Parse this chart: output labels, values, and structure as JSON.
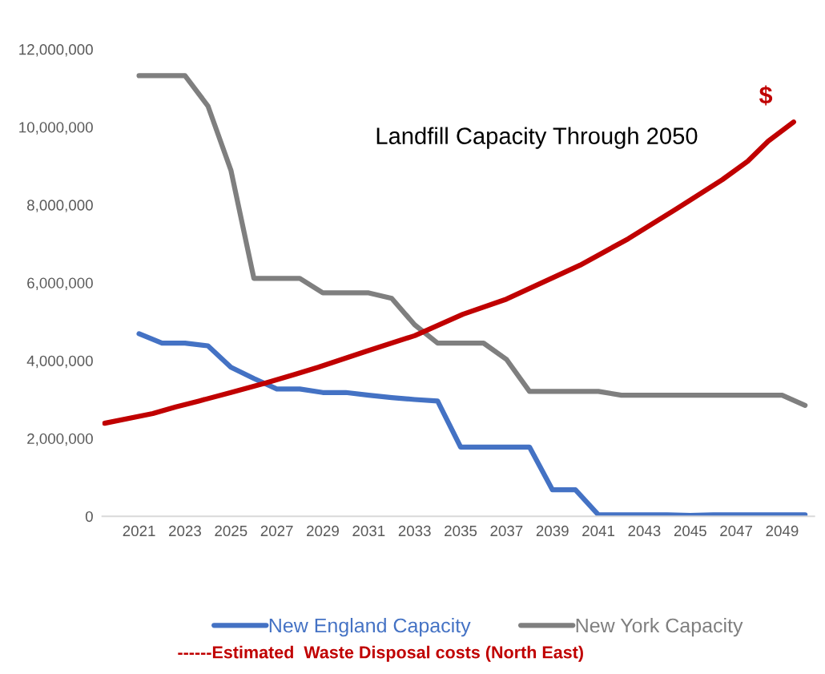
{
  "chart_data": {
    "type": "line",
    "title": "Landfill Capacity Through 2050",
    "xlim": [
      2019.4,
      2050.4
    ],
    "xticks": [
      2021,
      2023,
      2025,
      2027,
      2029,
      2031,
      2033,
      2035,
      2037,
      2039,
      2041,
      2043,
      2045,
      2047,
      2049
    ],
    "ylim": [
      0,
      12000000
    ],
    "yticks": [
      {
        "value": 0,
        "label": "0"
      },
      {
        "value": 2000000,
        "label": "2,000,000"
      },
      {
        "value": 4000000,
        "label": "4,000,000"
      },
      {
        "value": 6000000,
        "label": "6,000,000"
      },
      {
        "value": 8000000,
        "label": "8,000,000"
      },
      {
        "value": 10000000,
        "label": "10,000,000"
      },
      {
        "value": 12000000,
        "label": "12,000,000"
      }
    ],
    "grid": false,
    "legend": "bottom",
    "marker": "none",
    "line_style": "solid",
    "annotations": [
      {
        "text": "$",
        "x": 2049.5,
        "y": 10130000
      }
    ],
    "series": [
      {
        "name": "New England Capacity",
        "color": "#4472c4",
        "x": [
          2021,
          2022,
          2023,
          2024,
          2025,
          2026,
          2027,
          2028,
          2029,
          2030,
          2031,
          2032,
          2033,
          2034,
          2035,
          2036,
          2037,
          2038,
          2039,
          2040,
          2041,
          2042,
          2043,
          2044,
          2045,
          2046,
          2047,
          2048,
          2049,
          2050
        ],
        "values": [
          4690000,
          4450000,
          4450000,
          4380000,
          3830000,
          3540000,
          3270000,
          3270000,
          3180000,
          3180000,
          3110000,
          3050000,
          3000000,
          2960000,
          1780000,
          1780000,
          1780000,
          1780000,
          680000,
          680000,
          40000,
          40000,
          40000,
          40000,
          20000,
          40000,
          40000,
          40000,
          40000,
          40000
        ]
      },
      {
        "name": "New York Capacity",
        "color": "#7f7f7f",
        "x": [
          2021,
          2022,
          2023,
          2024,
          2025,
          2026,
          2027,
          2028,
          2029,
          2030,
          2031,
          2032,
          2033,
          2034,
          2035,
          2036,
          2037,
          2038,
          2039,
          2040,
          2041,
          2042,
          2043,
          2044,
          2045,
          2046,
          2047,
          2048,
          2049,
          2050
        ],
        "values": [
          11320000,
          11320000,
          11320000,
          10540000,
          8890000,
          6110000,
          6110000,
          6110000,
          5740000,
          5740000,
          5740000,
          5600000,
          4920000,
          4450000,
          4450000,
          4450000,
          4030000,
          3210000,
          3210000,
          3210000,
          3210000,
          3110000,
          3110000,
          3110000,
          3110000,
          3110000,
          3110000,
          3110000,
          3110000,
          2850000
        ]
      },
      {
        "name": "------Estimated  Waste Disposal costs (North East)",
        "color": "#c00000",
        "x": [
          2019.5,
          2021.6,
          2022.6,
          2023.6,
          2025.0,
          2026.5,
          2027.8,
          2028.8,
          2030.9,
          2033.0,
          2035.1,
          2037.0,
          2040.2,
          2042.3,
          2044.3,
          2046.4,
          2047.5,
          2048.4,
          2049.5
        ],
        "values": [
          2390000,
          2640000,
          2810000,
          2960000,
          3180000,
          3420000,
          3650000,
          3830000,
          4240000,
          4640000,
          5190000,
          5580000,
          6450000,
          7130000,
          7860000,
          8650000,
          9120000,
          9640000,
          10130000
        ]
      }
    ]
  }
}
